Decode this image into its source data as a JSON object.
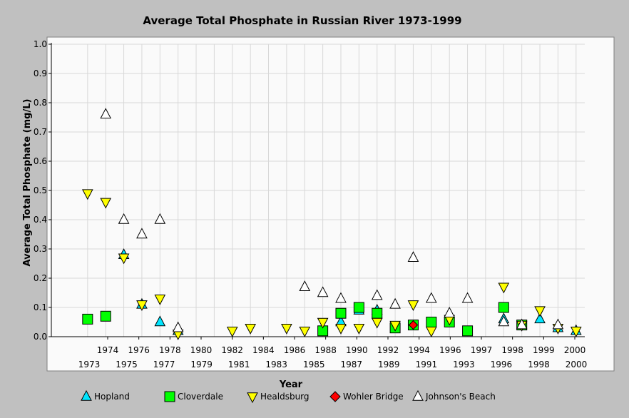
{
  "chart_data": {
    "type": "scatter",
    "title": "Average Total Phosphate in Russian River 1973-1999",
    "xlabel": "Year",
    "ylabel": "Average Total Phosphate (mg/L)",
    "xlim": [
      1972.1,
      2000.6
    ],
    "ylim": [
      0,
      1.0
    ],
    "yticks": [
      "0.0",
      "0.1",
      "0.2",
      "0.3",
      "0.4",
      "0.5",
      "0.6",
      "0.7",
      "0.8",
      "0.9",
      "1.0"
    ],
    "x_ticks_row1": [
      "1974",
      "1976",
      "1978",
      "1980",
      "1982",
      "1984",
      "1986",
      "1988",
      "1990",
      "1992",
      "1994",
      "1996",
      "1997",
      "1998",
      "1999",
      "2000"
    ],
    "x_ticks_row2": [
      "1973",
      "1975",
      "1977",
      "1979",
      "1981",
      "1983",
      "1985",
      "1987",
      "1989",
      "1991",
      "1993",
      "1996",
      "1998",
      "2000"
    ],
    "grid": true,
    "legend_position": "bottom",
    "series": [
      {
        "name": "Hopland",
        "marker": "triangle-up",
        "color": "#00e5ff",
        "points": [
          [
            1975,
            0.28
          ],
          [
            1976,
            0.11
          ],
          [
            1977,
            0.05
          ],
          [
            1978,
            0.02
          ],
          [
            1987,
            0.05
          ],
          [
            1988,
            0.09
          ],
          [
            1989,
            0.09
          ],
          [
            1996,
            0.06
          ],
          [
            1998,
            0.06
          ],
          [
            1999,
            0.03
          ],
          [
            2000,
            0.02
          ]
        ]
      },
      {
        "name": "Cloverdale",
        "marker": "square",
        "color": "#00ff00",
        "points": [
          [
            1973,
            0.06
          ],
          [
            1974,
            0.07
          ],
          [
            1986,
            0.02
          ],
          [
            1987,
            0.08
          ],
          [
            1988,
            0.1
          ],
          [
            1989,
            0.08
          ],
          [
            1990,
            0.03
          ],
          [
            1991,
            0.04
          ],
          [
            1992,
            0.05
          ],
          [
            1993,
            0.05
          ],
          [
            1994,
            0.02
          ],
          [
            1996,
            0.1
          ],
          [
            1997,
            0.04
          ]
        ]
      },
      {
        "name": "Healdsburg",
        "marker": "triangle-down",
        "color": "#ffff00",
        "points": [
          [
            1973,
            0.49
          ],
          [
            1974,
            0.46
          ],
          [
            1975,
            0.27
          ],
          [
            1976,
            0.11
          ],
          [
            1977,
            0.13
          ],
          [
            1978,
            0.01
          ],
          [
            1981,
            0.02
          ],
          [
            1982,
            0.03
          ],
          [
            1984,
            0.03
          ],
          [
            1985,
            0.02
          ],
          [
            1986,
            0.05
          ],
          [
            1987,
            0.03
          ],
          [
            1988,
            0.03
          ],
          [
            1989,
            0.05
          ],
          [
            1990,
            0.04
          ],
          [
            1991,
            0.11
          ],
          [
            1992,
            0.02
          ],
          [
            1993,
            0.06
          ],
          [
            1996,
            0.17
          ],
          [
            1997,
            0.04
          ],
          [
            1998,
            0.09
          ],
          [
            1999,
            0.03
          ],
          [
            2000,
            0.02
          ]
        ]
      },
      {
        "name": "Wohler Bridge",
        "marker": "diamond",
        "color": "#ff0000",
        "points": [
          [
            1991,
            0.04
          ]
        ]
      },
      {
        "name": "Johnson's Beach",
        "marker": "triangle-up",
        "color": "#ffffff",
        "points": [
          [
            1974,
            0.76
          ],
          [
            1975,
            0.4
          ],
          [
            1976,
            0.35
          ],
          [
            1977,
            0.4
          ],
          [
            1978,
            0.03
          ],
          [
            1985,
            0.17
          ],
          [
            1986,
            0.15
          ],
          [
            1987,
            0.13
          ],
          [
            1989,
            0.14
          ],
          [
            1990,
            0.11
          ],
          [
            1991,
            0.27
          ],
          [
            1992,
            0.13
          ],
          [
            1993,
            0.08
          ],
          [
            1994,
            0.13
          ],
          [
            1996,
            0.05
          ],
          [
            1997,
            0.04
          ],
          [
            1999,
            0.04
          ]
        ]
      }
    ]
  }
}
